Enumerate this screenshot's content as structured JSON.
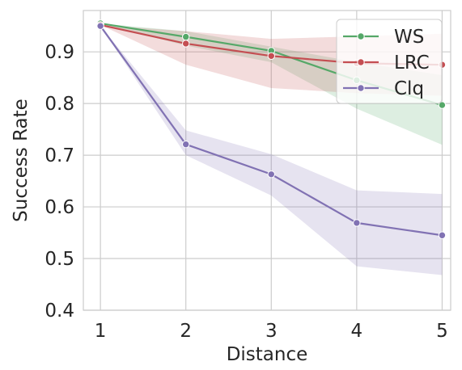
{
  "chart_data": {
    "type": "line",
    "xlabel": "Distance",
    "ylabel": "Success Rate",
    "x": [
      1,
      2,
      3,
      4,
      5
    ],
    "xlim": [
      0.8,
      5.1
    ],
    "ylim": [
      0.4,
      0.98
    ],
    "yticks": [
      0.4,
      0.5,
      0.6,
      0.7,
      0.8,
      0.9
    ],
    "grid": true,
    "legend_position": "top-right",
    "series": [
      {
        "name": "WS",
        "color": "#55a868",
        "values": [
          0.955,
          0.929,
          0.902,
          0.845,
          0.797
        ],
        "ci_lower": [
          0.955,
          0.912,
          0.88,
          0.79,
          0.72
        ],
        "ci_upper": [
          0.955,
          0.94,
          0.91,
          0.88,
          0.855
        ]
      },
      {
        "name": "LRC",
        "color": "#c44e52",
        "values": [
          0.952,
          0.916,
          0.892,
          0.878,
          0.875
        ],
        "ci_lower": [
          0.952,
          0.875,
          0.83,
          0.82,
          0.815
        ],
        "ci_upper": [
          0.952,
          0.94,
          0.925,
          0.93,
          0.935
        ]
      },
      {
        "name": "Clq",
        "color": "#8172b3",
        "values": [
          0.95,
          0.721,
          0.663,
          0.569,
          0.545
        ],
        "ci_lower": [
          0.95,
          0.7,
          0.622,
          0.485,
          0.468
        ],
        "ci_upper": [
          0.95,
          0.748,
          0.702,
          0.632,
          0.625
        ]
      }
    ]
  }
}
